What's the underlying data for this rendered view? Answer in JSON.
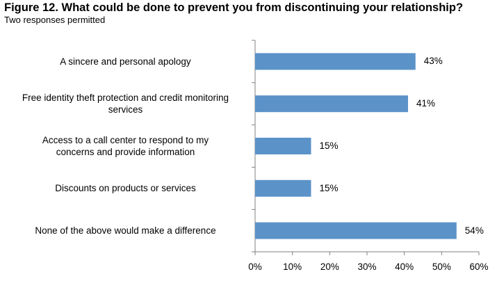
{
  "chart_data": {
    "type": "bar",
    "orientation": "horizontal",
    "title": "Figure 12. What could be done to prevent you from discontinuing your relationship?",
    "subtitle": "Two responses permitted",
    "categories": [
      "A sincere and personal apology",
      "Free identity theft protection and credit monitoring services",
      "Access to a call center to respond to my concerns and provide information",
      "Discounts on products or services",
      "None of the above would make a difference"
    ],
    "category_lines": [
      [
        "A sincere and personal apology"
      ],
      [
        "Free identity theft protection and credit monitoring",
        "services"
      ],
      [
        "Access to a call center to respond to my",
        "concerns and provide information"
      ],
      [
        "Discounts on products or services"
      ],
      [
        "None of the above would make a difference"
      ]
    ],
    "values": [
      43,
      41,
      15,
      15,
      54
    ],
    "value_labels": [
      "43%",
      "41%",
      "15%",
      "15%",
      "54%"
    ],
    "xlim": [
      0,
      60
    ],
    "xticks": [
      0,
      10,
      20,
      30,
      40,
      50,
      60
    ],
    "xtick_labels": [
      "0%",
      "10%",
      "20%",
      "30%",
      "40%",
      "50%",
      "60%"
    ],
    "xlabel": "",
    "ylabel": "",
    "grid": false,
    "legend": "none",
    "bar_color": "#5b93c9",
    "axis_color": "#808080"
  }
}
